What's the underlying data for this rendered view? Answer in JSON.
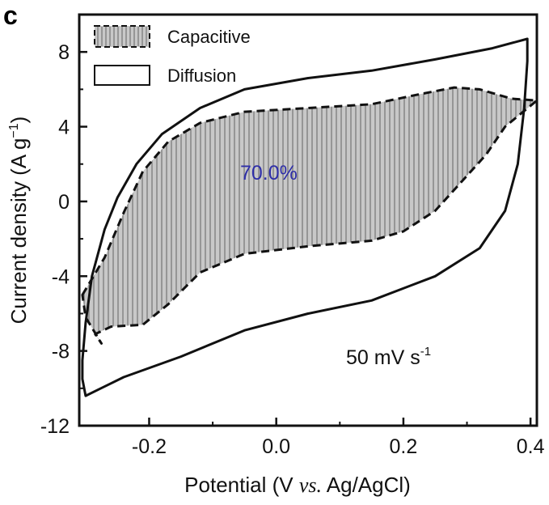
{
  "panel_label": "c",
  "colors": {
    "axis": "#111111",
    "fill": "#c8c8c8",
    "hatch": "#6e6e6e",
    "percent": "#2e2ea8"
  },
  "chart_data": {
    "type": "line",
    "xlabel_pre": "Potential (V ",
    "xlabel_italic": "vs.",
    "xlabel_post": " Ag/AgCl)",
    "ylabel_main": "Current density  (A g",
    "ylabel_sup": "−1",
    "ylabel_close": ")",
    "xlim": [
      -0.31,
      0.41
    ],
    "ylim": [
      -12,
      10
    ],
    "xticks": [
      -0.2,
      0.0,
      0.2,
      0.4
    ],
    "xtick_labels": [
      "-0.2",
      "0.0",
      "0.2",
      "0.4"
    ],
    "yticks": [
      -12,
      -8,
      -4,
      0,
      4,
      8
    ],
    "ytick_labels": [
      "-12",
      "-8",
      "-4",
      "0",
      "4",
      "8"
    ],
    "legend": [
      {
        "label": "Capacitive",
        "style": "hatched-dashed"
      },
      {
        "label": "Diffusion",
        "style": "solid-outline"
      }
    ],
    "annotations": {
      "capacitive_percent": "70.0%",
      "scan_rate": "50 mV s",
      "scan_rate_sup": "-1"
    },
    "series": [
      {
        "name": "Diffusion",
        "style": "solid",
        "points": [
          [
            0.395,
            8.7
          ],
          [
            0.34,
            8.2
          ],
          [
            0.25,
            7.6
          ],
          [
            0.15,
            7.0
          ],
          [
            0.05,
            6.6
          ],
          [
            -0.05,
            6.0
          ],
          [
            -0.12,
            5.0
          ],
          [
            -0.18,
            3.6
          ],
          [
            -0.22,
            2.0
          ],
          [
            -0.25,
            0.2
          ],
          [
            -0.27,
            -1.5
          ],
          [
            -0.29,
            -4.0
          ],
          [
            -0.3,
            -6.5
          ],
          [
            -0.305,
            -8.5
          ],
          [
            -0.305,
            -9.5
          ],
          [
            -0.3,
            -10.4
          ],
          [
            -0.24,
            -9.4
          ],
          [
            -0.15,
            -8.3
          ],
          [
            -0.05,
            -6.9
          ],
          [
            0.05,
            -6.0
          ],
          [
            0.15,
            -5.3
          ],
          [
            0.25,
            -4.0
          ],
          [
            0.32,
            -2.5
          ],
          [
            0.36,
            -0.5
          ],
          [
            0.38,
            2.0
          ],
          [
            0.39,
            5.0
          ],
          [
            0.395,
            7.5
          ],
          [
            0.395,
            8.7
          ]
        ]
      },
      {
        "name": "Capacitive",
        "style": "dashed-hatched",
        "points": [
          [
            -0.305,
            -5.0
          ],
          [
            -0.27,
            -3.0
          ],
          [
            -0.24,
            -0.6
          ],
          [
            -0.21,
            1.6
          ],
          [
            -0.17,
            3.2
          ],
          [
            -0.12,
            4.2
          ],
          [
            -0.05,
            4.8
          ],
          [
            0.05,
            5.0
          ],
          [
            0.15,
            5.2
          ],
          [
            0.22,
            5.7
          ],
          [
            0.28,
            6.1
          ],
          [
            0.32,
            6.0
          ],
          [
            0.35,
            5.7
          ],
          [
            0.37,
            5.5
          ],
          [
            0.41,
            5.4
          ],
          [
            0.36,
            4.0
          ],
          [
            0.33,
            2.5
          ],
          [
            0.29,
            1.0
          ],
          [
            0.25,
            -0.5
          ],
          [
            0.2,
            -1.6
          ],
          [
            0.15,
            -2.1
          ],
          [
            0.05,
            -2.4
          ],
          [
            -0.05,
            -2.8
          ],
          [
            -0.12,
            -3.8
          ],
          [
            -0.17,
            -5.5
          ],
          [
            -0.21,
            -6.6
          ],
          [
            -0.26,
            -6.7
          ],
          [
            -0.285,
            -7.1
          ],
          [
            -0.275,
            -7.6
          ],
          [
            -0.3,
            -6.2
          ],
          [
            -0.305,
            -5.0
          ]
        ]
      }
    ]
  }
}
